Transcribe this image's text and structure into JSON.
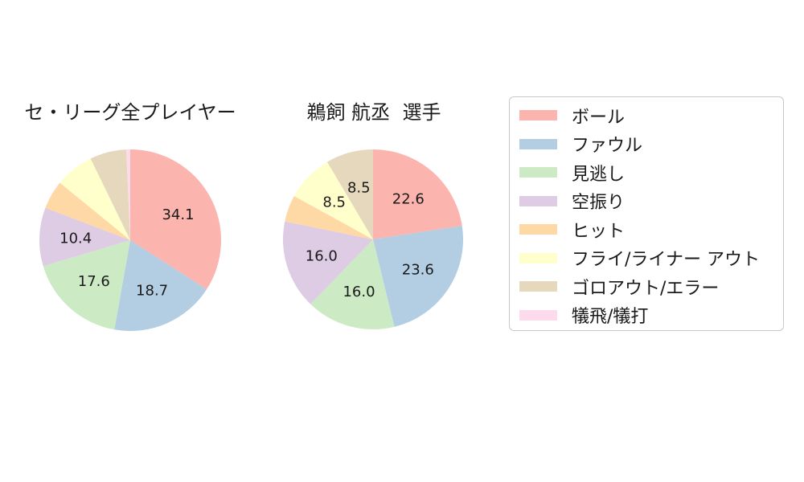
{
  "figure": {
    "background": "#ffffff",
    "text_color": "#1a1a1a"
  },
  "chart_data": [
    {
      "type": "pie",
      "title": "セ・リーグ全プレイヤー",
      "categories": [
        "ボール",
        "ファウル",
        "見逃し",
        "空振り",
        "ヒット",
        "フライ/ライナー アウト",
        "ゴロアウト/エラー",
        "犠飛/犠打"
      ],
      "values": [
        34.1,
        18.7,
        17.6,
        10.4,
        5.1,
        6.9,
        6.5,
        0.7
      ],
      "slice_labels": [
        "34.1",
        "18.7",
        "17.6",
        "10.4",
        null,
        null,
        null,
        null
      ],
      "colors": [
        "#fbb4ae",
        "#b3cde3",
        "#ccebc5",
        "#decbe4",
        "#fed9a6",
        "#ffffcc",
        "#e5d8bd",
        "#fddaec"
      ],
      "start_angle": "top",
      "direction": "clockwise",
      "label_distance": 0.6
    },
    {
      "type": "pie",
      "title": "鵜飼 航丞  選手",
      "categories": [
        "ボール",
        "ファウル",
        "見逃し",
        "空振り",
        "ヒット",
        "フライ/ライナー アウト",
        "ゴロアウト/エラー",
        "犠飛/犠打"
      ],
      "values": [
        22.6,
        23.6,
        16.0,
        16.0,
        4.8,
        8.5,
        8.5,
        0.0
      ],
      "slice_labels": [
        "22.6",
        "23.6",
        "16.0",
        "16.0",
        null,
        "8.5",
        "8.5",
        null
      ],
      "colors": [
        "#fbb4ae",
        "#b3cde3",
        "#ccebc5",
        "#decbe4",
        "#fed9a6",
        "#ffffcc",
        "#e5d8bd",
        "#fddaec"
      ],
      "start_angle": "top",
      "direction": "clockwise",
      "label_distance": 0.6
    }
  ],
  "legend": {
    "position": "right",
    "items": [
      {
        "key": "ball",
        "label": "ボール",
        "color": "#fbb4ae"
      },
      {
        "key": "foul",
        "label": "ファウル",
        "color": "#b3cde3"
      },
      {
        "key": "called-strike",
        "label": "見逃し",
        "color": "#ccebc5"
      },
      {
        "key": "swinging-strike",
        "label": "空振り",
        "color": "#decbe4"
      },
      {
        "key": "hit",
        "label": "ヒット",
        "color": "#fed9a6"
      },
      {
        "key": "fly-liner-out",
        "label": "フライ/ライナー アウト",
        "color": "#ffffcc"
      },
      {
        "key": "groundout-error",
        "label": "ゴロアウト/エラー",
        "color": "#e5d8bd"
      },
      {
        "key": "sacrifice",
        "label": "犠飛/犠打",
        "color": "#fddaec"
      }
    ]
  }
}
